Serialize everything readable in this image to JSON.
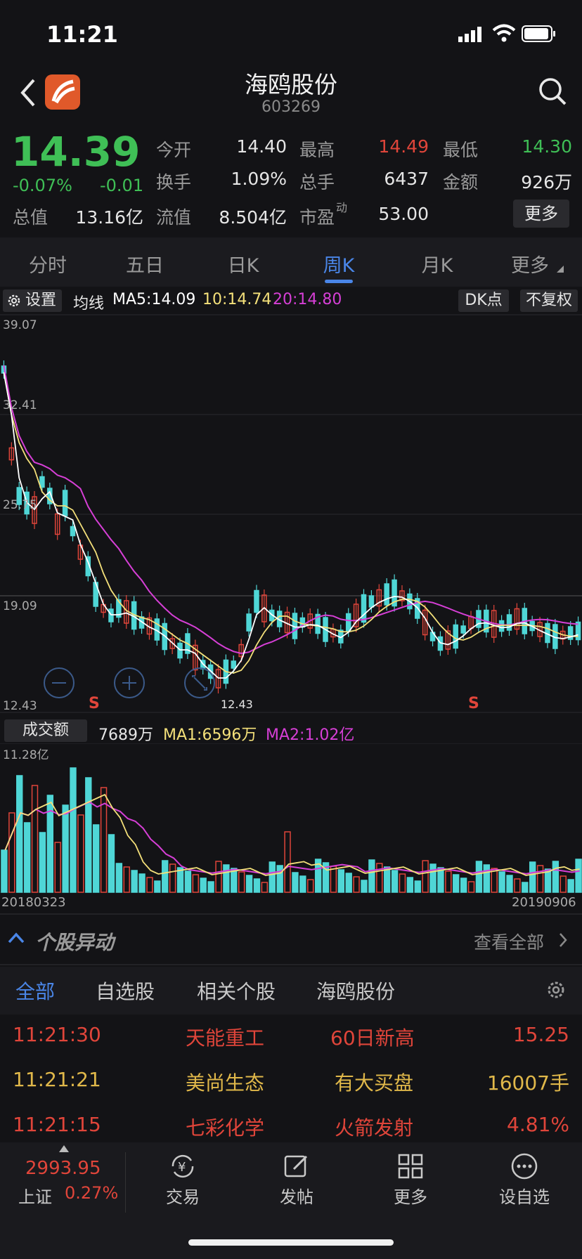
{
  "status_bar": {
    "time": "11:21"
  },
  "header": {
    "title": "海鸥股份",
    "code": "603269"
  },
  "quote": {
    "price": "14.39",
    "change_pct": "-0.07%",
    "change": "-0.01",
    "open_label": "今开",
    "open": "14.40",
    "high_label": "最高",
    "high": "14.49",
    "low_label": "最低",
    "low": "14.30",
    "turnover_label": "换手",
    "turnover": "1.09%",
    "volume_label": "总手",
    "volume": "6437",
    "amount_label": "金额",
    "amount": "926万",
    "mktcap_label": "总值",
    "mktcap": "13.16亿",
    "float_label": "流值",
    "float_cap": "8.504亿",
    "pe_label": "市盈",
    "pe_super": "动",
    "pe": "53.00",
    "more_label": "更多"
  },
  "period_tabs": [
    {
      "label": "分时"
    },
    {
      "label": "五日"
    },
    {
      "label": "日K"
    },
    {
      "label": "周K"
    },
    {
      "label": "月K"
    },
    {
      "label": "更多"
    }
  ],
  "active_tab": "周K",
  "ma_bar": {
    "settings": "设置",
    "label": "均线",
    "ma5": "MA5:14.09",
    "ma10": "10:14.74",
    "ma20": "20:14.80",
    "dk_button": "DK点",
    "adjust_button": "不复权"
  },
  "price_chart": {
    "y_labels": [
      "39.07",
      "32.41",
      "25.75",
      "19.09",
      "12.43"
    ],
    "low_marker": "12.43",
    "signal_marks": [
      "S",
      "S"
    ]
  },
  "volume_bar": {
    "label": "成交额",
    "value": "7689万",
    "ma1": "MA1:6596万",
    "ma2": "MA2:1.02亿",
    "max_label": "11.28亿",
    "start_date": "20180323",
    "end_date": "20190906"
  },
  "colors": {
    "up": "#e0453a",
    "down": "#4fd6d6",
    "ma5": "#ffffff",
    "ma10": "#f4e07a",
    "ma20": "#d63fd6",
    "accent": "#4a86e8",
    "green": "#3fbf56"
  },
  "news": {
    "title": "个股异动",
    "view_all": "查看全部",
    "tabs": [
      "全部",
      "自选股",
      "相关个股",
      "海鸥股份"
    ],
    "rows": [
      {
        "time": "11:21:30",
        "name": "天能重工",
        "event": "60日新高",
        "value": "15.25",
        "color": "#e0453a"
      },
      {
        "time": "11:21:21",
        "name": "美尚生态",
        "event": "有大买盘",
        "value": "16007手",
        "color": "#e0b84a"
      },
      {
        "time": "11:21:15",
        "name": "七彩化学",
        "event": "火箭发射",
        "value": "4.81%",
        "color": "#e0453a"
      }
    ]
  },
  "bottom_bar": {
    "index_value": "2993.95",
    "index_name": "上证",
    "index_pct": "0.27%",
    "items": [
      {
        "label": "交易",
        "icon": "yuan-cycle-icon"
      },
      {
        "label": "发帖",
        "icon": "edit-icon"
      },
      {
        "label": "更多",
        "icon": "grid-icon"
      },
      {
        "label": "设自选",
        "icon": "dots-circle-icon"
      }
    ]
  }
}
